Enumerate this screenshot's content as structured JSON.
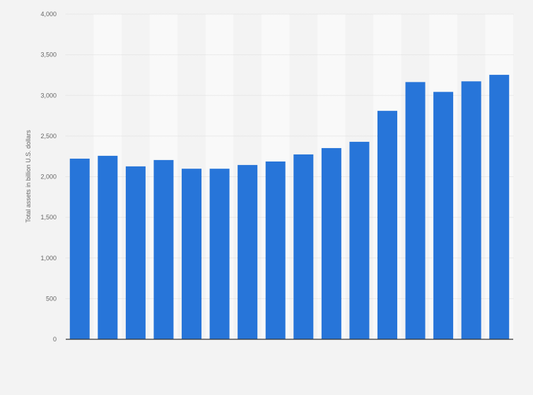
{
  "chart_data": {
    "type": "bar",
    "title": "",
    "xlabel": "",
    "ylabel": "Total assets in billion U.S. dollars",
    "ylim": [
      0,
      4000
    ],
    "yticks": [
      0,
      500,
      1000,
      1500,
      2000,
      2500,
      3000,
      3500,
      4000
    ],
    "ytick_labels": [
      "0",
      "500",
      "1,000",
      "1,500",
      "2,000",
      "2,500",
      "3,000",
      "3,500",
      "4,000"
    ],
    "categories": [
      "",
      "",
      "",
      "",
      "",
      "",
      "",
      "",
      "",
      "",
      "",
      "",
      "",
      "",
      "",
      ""
    ],
    "values": [
      2222,
      2257,
      2127,
      2205,
      2098,
      2098,
      2144,
      2187,
      2274,
      2352,
      2429,
      2810,
      3164,
      3043,
      3173,
      3253
    ],
    "grid": true,
    "bar_color": "#2775d9"
  }
}
